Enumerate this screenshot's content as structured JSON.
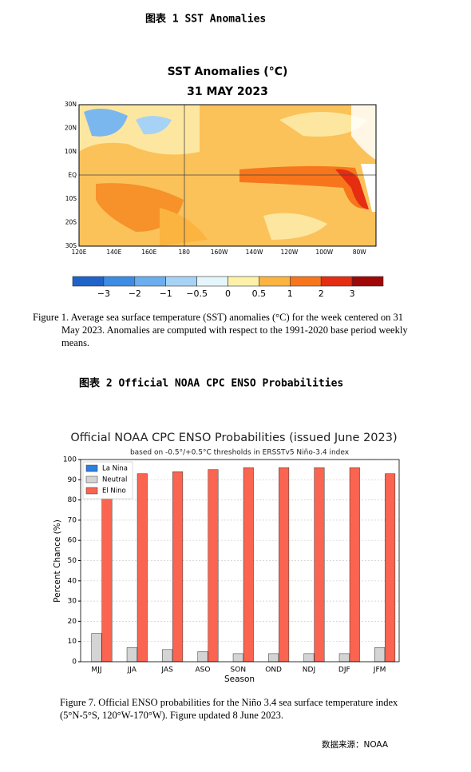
{
  "figure1": {
    "header": "图表 1 SST Anomalies",
    "title": "SST Anomalies (°C)",
    "date": "31 MAY 2023",
    "lat_labels": [
      "30N",
      "20N",
      "10N",
      "EQ",
      "10S",
      "20S",
      "30S"
    ],
    "lon_labels": [
      "120E",
      "140E",
      "160E",
      "180",
      "160W",
      "140W",
      "120W",
      "100W",
      "80W"
    ],
    "colorbar_colors": [
      "#1f63c8",
      "#3c8ce6",
      "#6aaeef",
      "#a6d3f5",
      "#e4f6fb",
      "#fdf1a8",
      "#fbb43f",
      "#f7761c",
      "#e52d12",
      "#a00707"
    ],
    "colorbar_labels": [
      "−3",
      "−2",
      "−1",
      "−0.5",
      "0",
      "0.5",
      "1",
      "2",
      "3"
    ],
    "caption": [
      "Figure 1. Average sea surface temperature (SST) anomalies (°C) for the week centered on 31",
      "May 2023.  Anomalies are computed with respect to the 1991-2020 base period weekly",
      "means."
    ]
  },
  "figure2": {
    "header": "图表 2 Official NOAA CPC ENSO Probabilities",
    "chart": {
      "type": "bar",
      "title": "Official NOAA CPC ENSO Probabilities (issued June 2023)",
      "subtitle": "based on -0.5°/+0.5°C thresholds in ERSSTv5 Niño-3.4 index",
      "y_label": "Percent Chance (%)",
      "x_label": "Season",
      "categories": [
        "MJJ",
        "JJA",
        "JAS",
        "ASO",
        "SON",
        "OND",
        "NDJ",
        "DJF",
        "JFM"
      ],
      "series": [
        {
          "name": "La Nina",
          "color": "#2b7fe0",
          "values": [
            0,
            0,
            0,
            0,
            0,
            0,
            0,
            0,
            0
          ]
        },
        {
          "name": "Neutral",
          "color": "#d4d4d4",
          "values": [
            14,
            7,
            6,
            5,
            4,
            4,
            4,
            4,
            7
          ]
        },
        {
          "name": "El Nino",
          "color": "#fa6450",
          "values": [
            86,
            93,
            94,
            95,
            96,
            96,
            96,
            96,
            93
          ]
        }
      ],
      "ylim": [
        0,
        100
      ],
      "yticks": [
        0,
        10,
        20,
        30,
        40,
        50,
        60,
        70,
        80,
        90,
        100
      ],
      "grid": true,
      "legend": "upper left"
    },
    "caption": [
      "Figure 7. Official ENSO probabilities for the Niño 3.4 sea surface temperature index",
      "(5°N-5°S, 120°W-170°W). Figure updated 8 June 2023."
    ]
  },
  "source": "数据来源：NOAA"
}
